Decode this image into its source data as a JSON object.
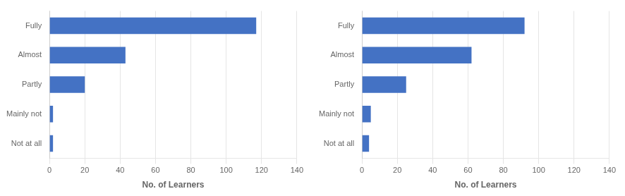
{
  "chart_data": [
    {
      "type": "bar",
      "orientation": "horizontal",
      "categories": [
        "Fully",
        "Almost",
        "Partly",
        "Mainly not",
        "Not at all"
      ],
      "values": [
        117,
        43,
        20,
        2,
        2
      ],
      "xlabel": "No. of Learners",
      "xlim": [
        0,
        140
      ],
      "xticks": [
        0,
        20,
        40,
        60,
        80,
        100,
        120,
        140
      ],
      "color": "#4472C4",
      "grid": true
    },
    {
      "type": "bar",
      "orientation": "horizontal",
      "categories": [
        "Fully",
        "Almost",
        "Partly",
        "Mainly not",
        "Not at all"
      ],
      "values": [
        92,
        62,
        25,
        5,
        4
      ],
      "xlabel": "No. of Learners",
      "xlim": [
        0,
        140
      ],
      "xticks": [
        0,
        20,
        40,
        60,
        80,
        100,
        120,
        140
      ],
      "color": "#4472C4",
      "grid": true
    }
  ]
}
